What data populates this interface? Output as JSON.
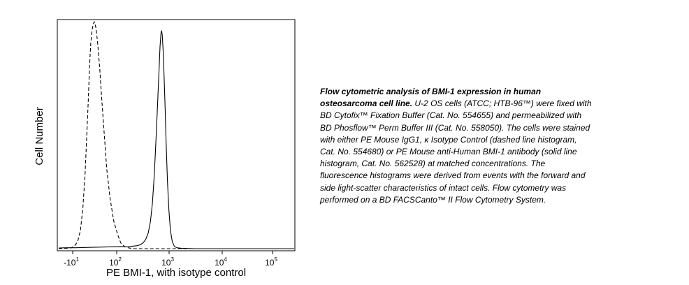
{
  "chart_data": {
    "type": "line",
    "title": "",
    "xlabel": "PE BMI-1, with isotype control",
    "ylabel": "Cell Number",
    "x_scale": "biexponential",
    "x_ticks": [
      {
        "base": "-10",
        "exp": "1",
        "value": -10
      },
      {
        "base": "10",
        "exp": "2",
        "value": 100
      },
      {
        "base": "10",
        "exp": "3",
        "value": 1000
      },
      {
        "base": "10",
        "exp": "4",
        "value": 10000
      },
      {
        "base": "10",
        "exp": "5",
        "value": 100000
      }
    ],
    "xlim": [
      -120,
      262144
    ],
    "ylim": [
      0,
      100
    ],
    "grid": false,
    "legend": "none",
    "series": [
      {
        "line_style": "dashed",
        "color": "#000000",
        "points": [
          [
            -120,
            0
          ],
          [
            -60,
            0.2
          ],
          [
            -20,
            0.4
          ],
          [
            -5,
            1
          ],
          [
            5,
            3
          ],
          [
            12,
            8
          ],
          [
            18,
            18
          ],
          [
            23,
            32
          ],
          [
            27,
            48
          ],
          [
            31,
            65
          ],
          [
            34,
            80
          ],
          [
            37,
            90
          ],
          [
            40,
            96
          ],
          [
            43,
            99
          ],
          [
            46,
            100
          ],
          [
            50,
            97
          ],
          [
            54,
            90
          ],
          [
            59,
            79
          ],
          [
            64,
            65
          ],
          [
            70,
            50
          ],
          [
            76,
            35
          ],
          [
            84,
            22
          ],
          [
            93,
            12
          ],
          [
            105,
            6
          ],
          [
            120,
            2.5
          ],
          [
            140,
            1
          ],
          [
            170,
            0.3
          ],
          [
            220,
            0
          ],
          [
            1000,
            0
          ],
          [
            10000,
            0
          ],
          [
            262144,
            0
          ]
        ]
      },
      {
        "line_style": "solid",
        "color": "#000000",
        "points": [
          [
            -120,
            0.3
          ],
          [
            -60,
            0.4
          ],
          [
            0,
            0.4
          ],
          [
            40,
            0.6
          ],
          [
            80,
            0.8
          ],
          [
            120,
            0.9
          ],
          [
            160,
            0.8
          ],
          [
            200,
            1.1
          ],
          [
            240,
            1.3
          ],
          [
            280,
            1.7
          ],
          [
            320,
            2.6
          ],
          [
            360,
            4.2
          ],
          [
            400,
            7
          ],
          [
            440,
            12
          ],
          [
            480,
            20
          ],
          [
            520,
            32
          ],
          [
            560,
            47
          ],
          [
            600,
            63
          ],
          [
            640,
            78
          ],
          [
            670,
            89
          ],
          [
            700,
            95
          ],
          [
            720,
            96
          ],
          [
            740,
            94
          ],
          [
            770,
            87
          ],
          [
            800,
            77
          ],
          [
            840,
            62
          ],
          [
            880,
            46
          ],
          [
            930,
            30
          ],
          [
            990,
            17
          ],
          [
            1060,
            8
          ],
          [
            1150,
            3
          ],
          [
            1260,
            1
          ],
          [
            1400,
            0.4
          ],
          [
            1700,
            0.2
          ],
          [
            3000,
            0
          ],
          [
            10000,
            0
          ],
          [
            262144,
            0
          ]
        ]
      }
    ]
  },
  "caption": {
    "title": "Flow cytometric analysis of BMI-1 expression in human osteosarcoma cell line.",
    "body": " U-2 OS cells  (ATCC; HTB-96™) were fixed with BD Cytofix™ Fixation Buffer (Cat. No. 554655) and permeabilized with BD Phosflow™ Perm Buffer III (Cat. No. 558050). The cells were stained with either PE Mouse IgG1, κ Isotype Control (dashed line histogram, Cat. No. 554680) or PE Mouse anti-Human BMI-1 antibody (solid line histogram, Cat. No. 562528) at matched concentrations. The fluorescence histograms were derived from events with the forward and side light-scatter characteristics of intact cells. Flow cytometry was performed on a BD FACSCanto™ II Flow Cytometry System."
  }
}
